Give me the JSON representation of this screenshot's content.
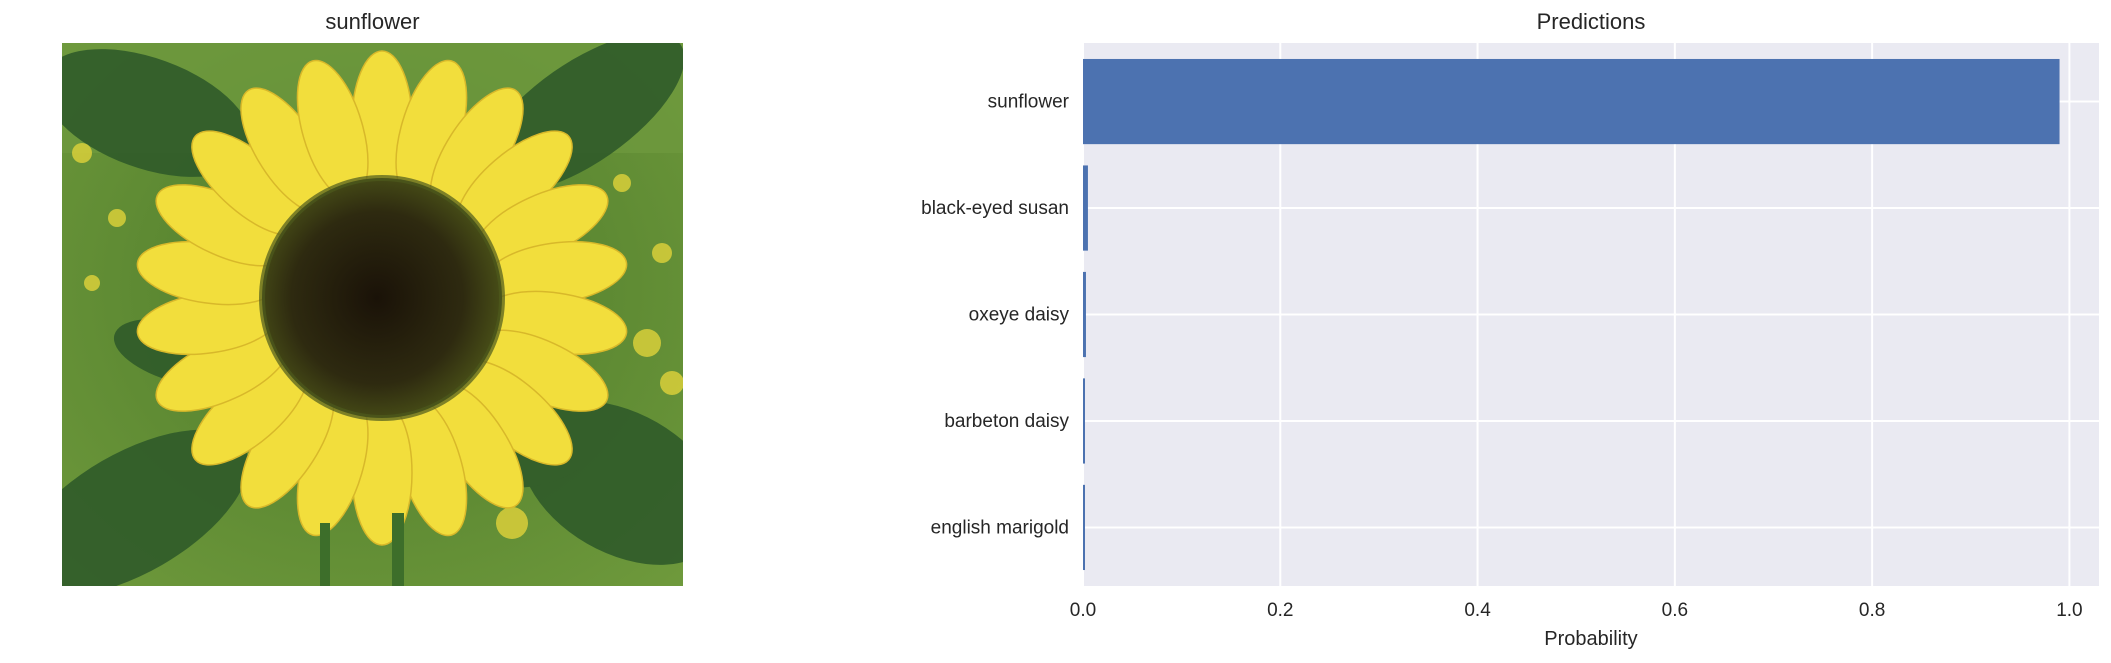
{
  "image_panel": {
    "title": "sunflower",
    "image_icon": "sunflower-photo"
  },
  "chart_data": {
    "type": "bar",
    "orientation": "horizontal",
    "title": "Predictions",
    "xlabel": "Probability",
    "ylabel": "",
    "categories": [
      "sunflower",
      "black-eyed susan",
      "oxeye daisy",
      "barbeton daisy",
      "english marigold"
    ],
    "values": [
      0.99,
      0.005,
      0.003,
      0.001,
      0.001
    ],
    "xlim": [
      0.0,
      1.03
    ],
    "xticks": [
      0.0,
      0.2,
      0.4,
      0.6,
      0.8,
      1.0
    ],
    "xtick_labels": [
      "0.0",
      "0.2",
      "0.4",
      "0.6",
      "0.8",
      "1.0"
    ],
    "grid": true,
    "colors": {
      "bar": "#4c72b0",
      "plot_background": "#eaeaf2",
      "grid": "#ffffff"
    }
  }
}
